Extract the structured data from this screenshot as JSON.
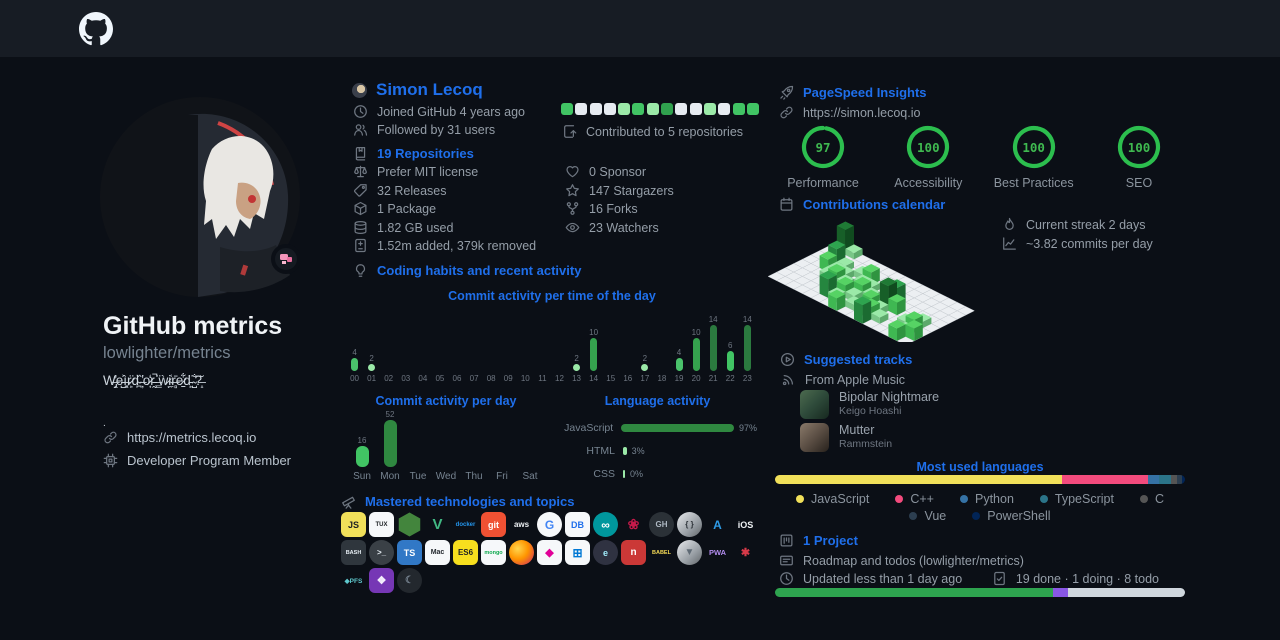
{
  "accent": {
    "link_blue": "#1f6feb",
    "green": "#2cbe4e",
    "bg": "#0b0f16",
    "topbar": "#171c24"
  },
  "profile_card": {
    "title": "GitHub metrics",
    "subtitle": "lowlighter/metrics",
    "bio": "W̶̡̭̓e̵̺͐ì̶͓r̷̙̈d̴̪̏ ̶̦̔o̷͎̒r̵̰̚ ̶͇̈ẁ̷ͅi̴̼͑r̶̻̄e̷̠͋d̵̙̈ ̴̺̐?̶̝̆",
    "bio_dot": ".",
    "website": "https://metrics.lecoq.io",
    "membership": "Developer Program Member"
  },
  "user": {
    "name": "Simon Lecoq",
    "joined": "Joined GitHub 4 years ago",
    "followed": "Followed by 31 users",
    "repositories": "19 Repositories",
    "license": "Prefer MIT license",
    "releases": "32 Releases",
    "packages": "1 Package",
    "storage": "1.82 GB used",
    "diff": "1.52m added, 379k removed",
    "habits_title": "Coding habits and recent activity",
    "contributed": "Contributed to 5 repositories",
    "sponsors": "0 Sponsor",
    "stargazers": "147 Stargazers",
    "forks": "16 Forks",
    "watchers": "23 Watchers"
  },
  "contrib_squares": {
    "levels": [
      2,
      0,
      0,
      0,
      1,
      2,
      1,
      3,
      0,
      0,
      1,
      0,
      2,
      2
    ],
    "palette": [
      "#e6ebf1",
      "#9be9a8",
      "#41c464",
      "#30a14e"
    ]
  },
  "chart_data": [
    {
      "type": "bar",
      "title": "Commit activity per time of the day",
      "categories": [
        "00",
        "01",
        "02",
        "03",
        "04",
        "05",
        "06",
        "07",
        "08",
        "09",
        "10",
        "11",
        "12",
        "13",
        "14",
        "15",
        "16",
        "17",
        "18",
        "19",
        "20",
        "21",
        "22",
        "23"
      ],
      "values": [
        4,
        2,
        0,
        0,
        0,
        0,
        0,
        0,
        0,
        0,
        0,
        0,
        0,
        2,
        10,
        0,
        0,
        2,
        0,
        4,
        10,
        14,
        6,
        14
      ],
      "colors": [
        "#4ac26b",
        "#9be9a8",
        "",
        "",
        "",
        "",
        "",
        "",
        "",
        "",
        "",
        "",
        "",
        "#9be9a8",
        "#35a24e",
        "",
        "",
        "#9be9a8",
        "",
        "#4ac26b",
        "#35a24e",
        "#2b7a3f",
        "#41c464",
        "#2b7a3f"
      ],
      "ylim": [
        0,
        14
      ]
    },
    {
      "type": "bar",
      "title": "Commit activity per day",
      "categories": [
        "Sun",
        "Mon",
        "Tue",
        "Wed",
        "Thu",
        "Fri",
        "Sat"
      ],
      "values": [
        16,
        52,
        0,
        0,
        0,
        0,
        0
      ],
      "colors": [
        "#41c464",
        "#2f8840",
        "",
        "",
        "",
        "",
        ""
      ],
      "ylim": [
        0,
        52
      ]
    },
    {
      "type": "bar",
      "title": "Language activity",
      "categories": [
        "JavaScript",
        "HTML",
        "CSS"
      ],
      "values": [
        97,
        3,
        0
      ],
      "value_labels": [
        "97%",
        "3%",
        "0%"
      ],
      "colors": [
        "#2f8840",
        "#9be9a8",
        "#9be9a8"
      ]
    }
  ],
  "techs": {
    "title": "Mastered technologies and topics",
    "rows": [
      [
        {
          "n": "javascript-icon",
          "t": "JS",
          "bg": "#f1e05a",
          "fg": "#1b1f23",
          "fs": 9,
          "sh": "sq"
        },
        {
          "n": "linux-icon",
          "t": "TUX",
          "bg": "#f6f8fa",
          "fg": "#1b1f23",
          "fs": 6,
          "sh": "sq"
        },
        {
          "n": "nodejs-icon",
          "t": "",
          "bg": "#43853d",
          "fg": "#fff",
          "fs": 8,
          "sh": "hex"
        },
        {
          "n": "vuejs-icon",
          "t": "V",
          "bg": "none",
          "fg": "#41b883",
          "fs": 15,
          "sh": "sq"
        },
        {
          "n": "docker-icon",
          "t": "docker",
          "bg": "none",
          "fg": "#2496ed",
          "fs": 6,
          "sh": "sq"
        },
        {
          "n": "git-icon",
          "t": "git",
          "bg": "#f05133",
          "fg": "#ffffff",
          "fs": 9,
          "sh": "sq"
        },
        {
          "n": "aws-icon",
          "t": "aws",
          "bg": "none",
          "fg": "#eceff2",
          "fs": 8,
          "sh": "sq"
        },
        {
          "n": "google-icon",
          "t": "G",
          "bg": "#f6f8fa",
          "fg": "#4285f4",
          "fs": 12,
          "sh": "ci"
        },
        {
          "n": "sql-database-icon",
          "t": "DB",
          "bg": "#f6f8fa",
          "fg": "#1f6feb",
          "fs": 9,
          "sh": "sq"
        },
        {
          "n": "arduino-icon",
          "t": "∞",
          "bg": "#00979d",
          "fg": "#ffffff",
          "fs": 12,
          "sh": "ci"
        },
        {
          "n": "raspberry-pi-icon",
          "t": "❀",
          "bg": "none",
          "fg": "#c51a4a",
          "fs": 14,
          "sh": "sq"
        },
        {
          "n": "github-icon",
          "t": "GH",
          "bg": "#2b3137",
          "fg": "#aeb8c2",
          "fs": 8,
          "sh": "ci"
        },
        {
          "n": "json-icon",
          "t": "{ }",
          "bg": "silver",
          "fg": "#2b3137",
          "fs": 8,
          "sh": "ci"
        },
        {
          "n": "azure-icon",
          "t": "A",
          "bg": "none",
          "fg": "#2e9be6",
          "fs": 12,
          "sh": "sq"
        },
        {
          "n": "ios-icon",
          "t": "iOS",
          "bg": "none",
          "fg": "#f0f3f6",
          "fs": 9,
          "sh": "sq"
        }
      ],
      [
        {
          "n": "bash-icon",
          "t": "BASH",
          "bg": "#2f363d",
          "fg": "#e6edf3",
          "fs": 5.5,
          "sh": "sq"
        },
        {
          "n": "terminal-icon",
          "t": ">_",
          "bg": "#3a4046",
          "fg": "#e6edf3",
          "fs": 8,
          "sh": "ci"
        },
        {
          "n": "typescript-icon",
          "t": "TS",
          "bg": "#3178c6",
          "fg": "#ffffff",
          "fs": 9,
          "sh": "sq"
        },
        {
          "n": "macos-icon",
          "t": "Mac",
          "bg": "#f6f8fa",
          "fg": "#24292f",
          "fs": 7,
          "sh": "sq"
        },
        {
          "n": "es6-icon",
          "t": "ES6",
          "bg": "#f7df1e",
          "fg": "#1b1f23",
          "fs": 8,
          "sh": "sq"
        },
        {
          "n": "mongodb-icon",
          "t": "mongo",
          "bg": "#f6f8fa",
          "fg": "#10aa50",
          "fs": 5.5,
          "sh": "sq"
        },
        {
          "n": "firefox-icon",
          "t": "",
          "bg": "ff",
          "fg": "#fff",
          "fs": 8,
          "sh": "ff"
        },
        {
          "n": "graphql-icon",
          "t": "◆",
          "bg": "#f6f8fa",
          "fg": "#e10098",
          "fs": 11,
          "sh": "sq"
        },
        {
          "n": "windows-icon",
          "t": "⊞",
          "bg": "#f6f8fa",
          "fg": "#0078d4",
          "fs": 12,
          "sh": "sq"
        },
        {
          "n": "electron-icon",
          "t": "e",
          "bg": "#2f3241",
          "fg": "#9feaf9",
          "fs": 9,
          "sh": "ci"
        },
        {
          "n": "npm-icon",
          "t": "n",
          "bg": "#cb3837",
          "fg": "#ffffff",
          "fs": 10,
          "sh": "sq"
        },
        {
          "n": "babel-icon",
          "t": "BABEL",
          "bg": "none",
          "fg": "#f5da55",
          "fs": 5.5,
          "sh": "sq"
        },
        {
          "n": "vuetify-icon",
          "t": "▼",
          "bg": "silver",
          "fg": "#5f6a75",
          "fs": 10,
          "sh": "ci"
        },
        {
          "n": "pwa-icon",
          "t": "PWA",
          "bg": "none",
          "fg": "#b48ef0",
          "fs": 7.5,
          "sh": "sq"
        },
        {
          "n": "rust-icon",
          "t": "✱",
          "bg": "none",
          "fg": "#d73a49",
          "fs": 11,
          "sh": "sq"
        }
      ],
      [
        {
          "n": "ipfs-icon",
          "t": "◆PFS",
          "bg": "none",
          "fg": "#5fc8cd",
          "fs": 6.5,
          "sh": "sq"
        },
        {
          "n": "obsidian-icon",
          "t": "❖",
          "bg": "#7637b5",
          "fg": "#f3eefc",
          "fs": 11,
          "sh": "sq"
        },
        {
          "n": "crescent-icon",
          "t": "☾",
          "bg": "#23282e",
          "fg": "#768390",
          "fs": 10,
          "sh": "ci"
        }
      ]
    ]
  },
  "pagespeed": {
    "title": "PageSpeed Insights",
    "url": "https://simon.lecoq.io",
    "gauges": [
      {
        "value": 97,
        "label": "Performance"
      },
      {
        "value": 100,
        "label": "Accessibility"
      },
      {
        "value": 100,
        "label": "Best Practices"
      },
      {
        "value": 100,
        "label": "SEO"
      }
    ]
  },
  "calendar": {
    "title": "Contributions calendar",
    "cells": [
      [
        0,
        4,
        1,
        0,
        0,
        0,
        0,
        0,
        0,
        0,
        0,
        0,
        0,
        0,
        0,
        0
      ],
      [
        0,
        1,
        0,
        0,
        0,
        0,
        0,
        0,
        0,
        0,
        0,
        0,
        0,
        0,
        0,
        0
      ],
      [
        0,
        0,
        3,
        1,
        0,
        1,
        2,
        0,
        1,
        0,
        0,
        0,
        0,
        0,
        0,
        0
      ],
      [
        0,
        0,
        2,
        1,
        1,
        0,
        1,
        1,
        0,
        1,
        3,
        0,
        0,
        0,
        0,
        0
      ],
      [
        0,
        0,
        0,
        1,
        2,
        1,
        0,
        2,
        1,
        0,
        4,
        2,
        0,
        0,
        1,
        0
      ],
      [
        0,
        0,
        0,
        0,
        1,
        0,
        2,
        1,
        0,
        2,
        1,
        0,
        0,
        1,
        2,
        0
      ],
      [
        0,
        0,
        0,
        0,
        0,
        3,
        1,
        0,
        1,
        0,
        2,
        1,
        0,
        0,
        1,
        2
      ],
      [
        0,
        0,
        0,
        0,
        0,
        0,
        0,
        2,
        0,
        0,
        3,
        0,
        0,
        0,
        2,
        0
      ]
    ]
  },
  "streak": {
    "current": "Current streak 2 days",
    "average": "~3.82 commits per day"
  },
  "music": {
    "title": "Suggested tracks",
    "source": "From Apple Music",
    "tracks": [
      {
        "title": "Bipolar Nightmare",
        "artist": "Keigo Hoashi"
      },
      {
        "title": "Mutter",
        "artist": "Rammstein"
      }
    ]
  },
  "languages": {
    "title": "Most used languages",
    "segments": [
      {
        "name": "JavaScript",
        "color": "#f1e05a",
        "pct": 70
      },
      {
        "name": "C++",
        "color": "#f34b7d",
        "pct": 21
      },
      {
        "name": "Python",
        "color": "#3572a5",
        "pct": 2.6
      },
      {
        "name": "TypeScript",
        "color": "#2b7489",
        "pct": 2.9
      },
      {
        "name": "C",
        "color": "#555555",
        "pct": 1.6
      },
      {
        "name": "Vue",
        "color": "#2c3e50",
        "pct": 1.2
      },
      {
        "name": "PowerShell",
        "color": "#012456",
        "pct": 0.7
      }
    ],
    "legend_rows": [
      [
        {
          "label": "JavaScript",
          "color": "#f1e05a"
        },
        {
          "label": "C++",
          "color": "#f34b7d"
        },
        {
          "label": "Python",
          "color": "#3572a5"
        },
        {
          "label": "TypeScript",
          "color": "#2b7489"
        },
        {
          "label": "C",
          "color": "#555555"
        }
      ],
      [
        {
          "label": "Vue",
          "color": "#2c3e50"
        },
        {
          "label": "PowerShell",
          "color": "#012456"
        }
      ]
    ]
  },
  "project": {
    "title": "1 Project",
    "name": "Roadmap and todos (lowlighter/metrics)",
    "updated": "Updated less than 1 day ago",
    "status": "19 done · 1 doing · 8 todo",
    "progress": [
      {
        "state": "done",
        "color": "#2ea44f",
        "pct": 67.8
      },
      {
        "state": "doing",
        "color": "#8957e5",
        "pct": 3.6
      },
      {
        "state": "todo",
        "color": "#d0d7de",
        "pct": 28.6
      }
    ]
  }
}
